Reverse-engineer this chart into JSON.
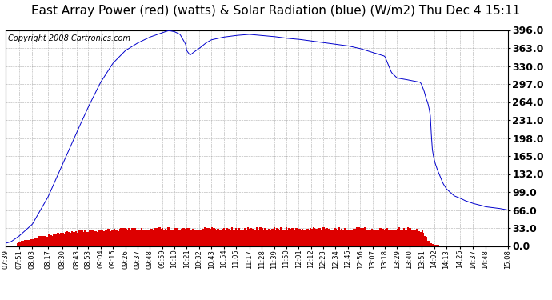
{
  "title": "East Array Power (red) (watts) & Solar Radiation (blue) (W/m2) Thu Dec 4 15:11",
  "copyright": "Copyright 2008 Cartronics.com",
  "y_ticks": [
    0.0,
    33.0,
    66.0,
    99.0,
    132.0,
    165.0,
    198.0,
    231.0,
    264.0,
    297.0,
    330.0,
    363.0,
    396.0
  ],
  "y_tick_labels": [
    "0.0",
    "33.0",
    "66.0",
    "99.0",
    "132.0",
    "165.0",
    "198.0",
    "231.0",
    "264.0",
    "297.0",
    "330.0",
    "363.0",
    "396.0"
  ],
  "ylim": [
    0.0,
    396.0
  ],
  "blue_color": "#0000CC",
  "red_color": "#DD0000",
  "bg_color": "#FFFFFF",
  "grid_color": "#999999",
  "title_fontsize": 11,
  "copyright_fontsize": 7,
  "tick_fontsize": 9,
  "x_labels": [
    "07:39",
    "07:51",
    "08:03",
    "08:17",
    "08:30",
    "08:43",
    "08:53",
    "09:04",
    "09:15",
    "09:26",
    "09:37",
    "09:48",
    "09:59",
    "10:10",
    "10:21",
    "10:32",
    "10:43",
    "10:54",
    "11:05",
    "11:17",
    "11:28",
    "11:39",
    "11:50",
    "12:01",
    "12:12",
    "12:23",
    "12:34",
    "12:45",
    "12:56",
    "13:07",
    "13:18",
    "13:29",
    "13:40",
    "13:51",
    "14:02",
    "14:13",
    "14:25",
    "14:37",
    "14:48",
    "15:08"
  ]
}
